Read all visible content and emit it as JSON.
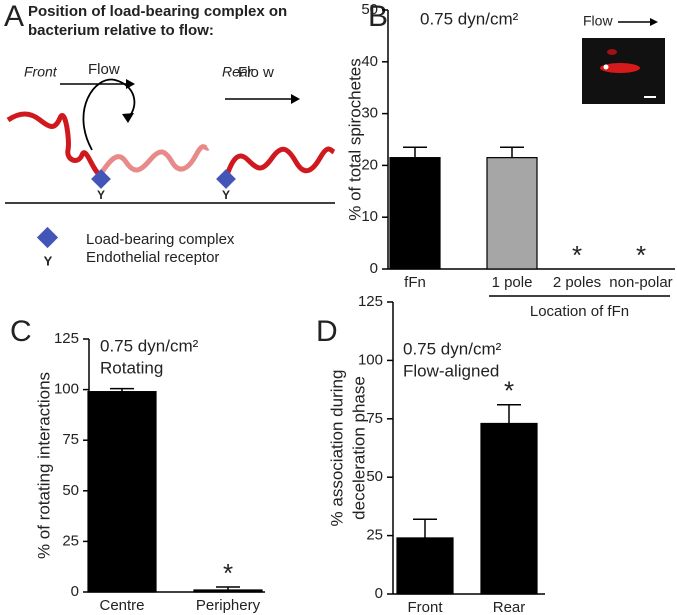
{
  "diagram": {
    "panel_label": "A",
    "title": [
      "Position of load-bearing complex on",
      "bacterium relative to flow:"
    ],
    "front_label": "Front",
    "rear_label": "Rear",
    "flow_labels": [
      "Flow",
      "Flo w"
    ],
    "receptor_labels": [
      "Y",
      "Y"
    ],
    "legend": [
      {
        "label": "Load-bearing complex"
      },
      {
        "symbol": "Y",
        "label": "Endothelial receptor"
      }
    ]
  },
  "chart_data": [
    {
      "type": "bar",
      "panel_label": "B",
      "ylabel": "% of total spirochetes",
      "annotations": [
        "0.75 dyn/cm²"
      ],
      "inset_label": "Flow",
      "categories": [
        "fFn",
        "1 pole",
        "2 poles",
        "non-polar"
      ],
      "group_label": "Location of fFn",
      "values": [
        21.5,
        21.5,
        0,
        0
      ],
      "errors": [
        2,
        2,
        null,
        null
      ],
      "significance": [
        null,
        null,
        "*",
        "*"
      ],
      "colors": [
        "#000000",
        "#a6a6a6",
        "#000000",
        "#000000"
      ],
      "ylim": [
        0,
        50
      ],
      "yticks": [
        0,
        10,
        20,
        30,
        40,
        50
      ],
      "grid": false
    },
    {
      "type": "bar",
      "panel_label": "C",
      "ylabel": "% of rotating interactions",
      "annotations": [
        "0.75 dyn/cm²",
        "Rotating"
      ],
      "categories": [
        "Centre",
        "Periphery"
      ],
      "values": [
        99,
        1
      ],
      "errors": [
        1.5,
        1.5
      ],
      "significance": [
        null,
        "*"
      ],
      "colors": [
        "#000000",
        "#000000"
      ],
      "ylim": [
        0,
        125
      ],
      "yticks": [
        0,
        25,
        50,
        75,
        100,
        125
      ],
      "grid": false
    },
    {
      "type": "bar",
      "panel_label": "D",
      "ylabel": [
        "% association during",
        "deceleration phase"
      ],
      "annotations": [
        "0.75 dyn/cm²",
        "Flow-aligned"
      ],
      "categories": [
        "Front",
        "Rear"
      ],
      "values": [
        24,
        73
      ],
      "errors": [
        8,
        8
      ],
      "significance": [
        null,
        "*"
      ],
      "colors": [
        "#000000",
        "#000000"
      ],
      "ylim": [
        0,
        125
      ],
      "yticks": [
        0,
        25,
        50,
        75,
        100,
        125
      ],
      "grid": false
    }
  ]
}
